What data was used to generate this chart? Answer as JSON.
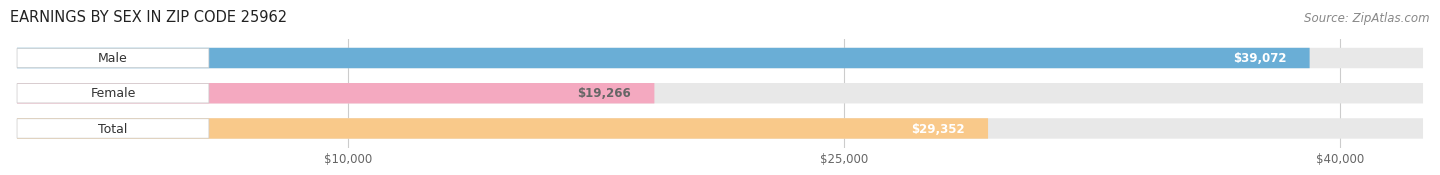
{
  "title": "EARNINGS BY SEX IN ZIP CODE 25962",
  "source": "Source: ZipAtlas.com",
  "categories": [
    "Male",
    "Female",
    "Total"
  ],
  "values": [
    39072,
    19266,
    29352
  ],
  "bar_colors": [
    "#6AAED6",
    "#F4A9C0",
    "#F9C98A"
  ],
  "track_color": "#E8E8E8",
  "value_label_colors": [
    "#FFFFFF",
    "#666666",
    "#FFFFFF"
  ],
  "x_ticks": [
    10000,
    25000,
    40000
  ],
  "x_tick_labels": [
    "$10,000",
    "$25,000",
    "$40,000"
  ],
  "xlim_max": 42500,
  "title_fontsize": 10.5,
  "source_fontsize": 8.5,
  "bar_height": 0.58,
  "background_color": "#FFFFFF"
}
